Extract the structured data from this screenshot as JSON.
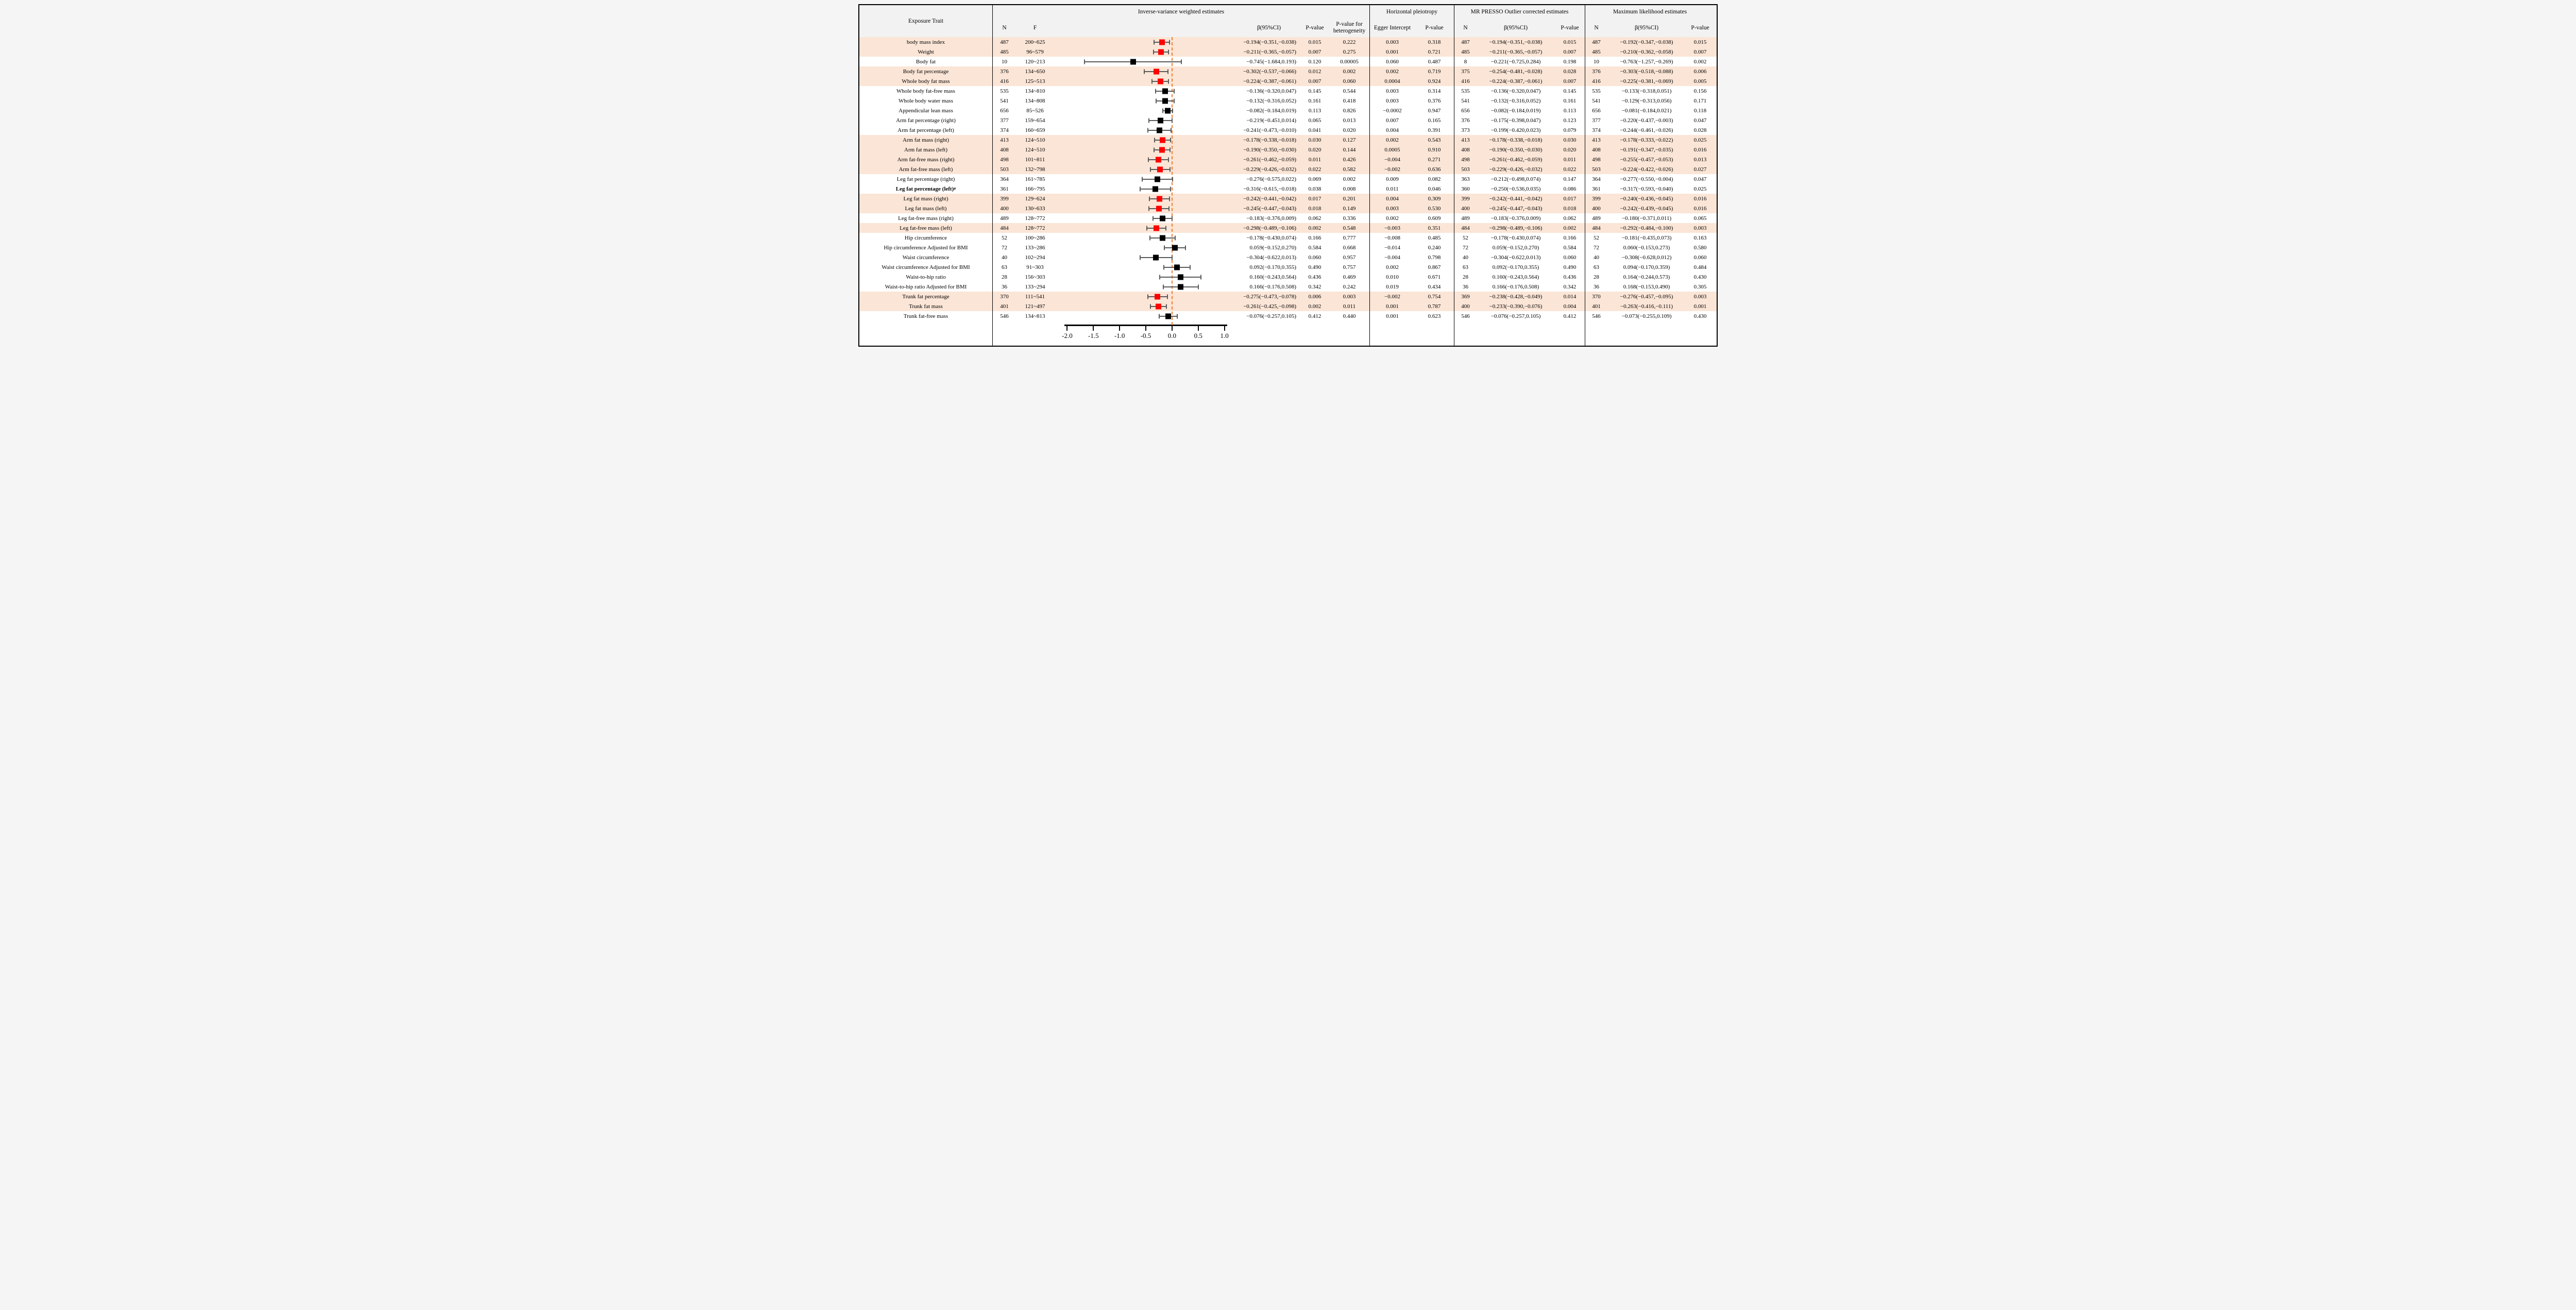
{
  "colors": {
    "highlight": "#fbe5d6",
    "header_bg": "#f2f2f2",
    "marker_significant": "#ff0000",
    "marker_default": "#000000",
    "ci_bar": "#595959",
    "zero_line": "#ed7d31",
    "border": "#000000"
  },
  "header": {
    "exposure_trait": "Exposure Trait",
    "ivw": {
      "title": "Inverse-variance weighted estimates",
      "n": "N",
      "f": "F",
      "beta": "β(95%CI)",
      "p": "P-value",
      "het": "P-value for heterogeneity"
    },
    "pleiotropy": {
      "title": "Horizontal pleiotropy",
      "egger": "Egger Intercept",
      "p": "P-value"
    },
    "presso": {
      "title": "MR PRESSO Outlier corrected estimates",
      "n": "N",
      "beta": "β(95%CI)",
      "p": "P-value"
    },
    "ml": {
      "title": "Maximum likelihood estimates",
      "n": "N",
      "beta": "β(95%CI)",
      "p": "P-value"
    }
  },
  "chart_data": {
    "type": "table",
    "plot": "forest",
    "xlabel": "",
    "xlim": [
      -2.25,
      1.25
    ],
    "axis_ticks": [
      {
        "v": -2.0,
        "label": "-2.0"
      },
      {
        "v": -1.5,
        "label": "-1.5"
      },
      {
        "v": -1.0,
        "label": "-1.0"
      },
      {
        "v": -0.5,
        "label": "-0.5"
      },
      {
        "v": 0.0,
        "label": "0.0"
      },
      {
        "v": 0.5,
        "label": "0.5"
      },
      {
        "v": 1.0,
        "label": "1.0"
      }
    ],
    "axis_line_span": [
      -2.05,
      1.05
    ],
    "zero_reference": 0,
    "rows": [
      {
        "trait": "body mass index",
        "sup": "",
        "bold": false,
        "hl": true,
        "n": "487",
        "f": "200~625",
        "est": -0.194,
        "lo": -0.351,
        "hi": -0.038,
        "beta_ci": "−0.194(−0.351,−0.038)",
        "p": "0.015",
        "p_het": "0.222",
        "egger": "0.003",
        "p_egger": "0.318",
        "n_presso": "487",
        "beta_ci_presso": "−0.194(−0.351,−0.038)",
        "p_presso": "0.015",
        "n_ml": "487",
        "beta_ci_ml": "−0.192(−0.347,−0.038)",
        "p_ml": "0.015"
      },
      {
        "trait": "Weight",
        "sup": "",
        "bold": false,
        "hl": true,
        "n": "485",
        "f": "96~579",
        "est": -0.211,
        "lo": -0.365,
        "hi": -0.057,
        "beta_ci": "−0.211(−0.365,−0.057)",
        "p": "0.007",
        "p_het": "0.275",
        "egger": "0.001",
        "p_egger": "0.721",
        "n_presso": "485",
        "beta_ci_presso": "−0.211(−0.365,−0.057)",
        "p_presso": "0.007",
        "n_ml": "485",
        "beta_ci_ml": "−0.210(−0.362,−0.058)",
        "p_ml": "0.007"
      },
      {
        "trait": "Body fat",
        "sup": "",
        "bold": false,
        "hl": false,
        "n": "10",
        "f": "120~213",
        "est": -0.745,
        "lo": -1.684,
        "hi": 0.193,
        "beta_ci": "−0.745(−1.684,0.193)",
        "p": "0.120",
        "p_het": "0.00005",
        "egger": "0.060",
        "p_egger": "0.487",
        "n_presso": "8",
        "beta_ci_presso": "−0.221(−0.725,0.284)",
        "p_presso": "0.198",
        "n_ml": "10",
        "beta_ci_ml": "−0.763(−1.257,−0.269)",
        "p_ml": "0.002"
      },
      {
        "trait": "Body fat percentage",
        "sup": "",
        "bold": false,
        "hl": true,
        "n": "376",
        "f": "134~650",
        "est": -0.302,
        "lo": -0.537,
        "hi": -0.066,
        "beta_ci": "−0.302(−0.537,−0.066)",
        "p": "0.012",
        "p_het": "0.002",
        "egger": "0.002",
        "p_egger": "0.719",
        "n_presso": "375",
        "beta_ci_presso": "−0.254(−0.481,−0.028)",
        "p_presso": "0.028",
        "n_ml": "376",
        "beta_ci_ml": "−0.303(−0.518,−0.088)",
        "p_ml": "0.006"
      },
      {
        "trait": "Whole body fat mass",
        "sup": "",
        "bold": false,
        "hl": true,
        "n": "416",
        "f": "125~513",
        "est": -0.224,
        "lo": -0.387,
        "hi": -0.061,
        "beta_ci": "−0.224(−0.387,−0.061)",
        "p": "0.007",
        "p_het": "0.060",
        "egger": "0.0004",
        "p_egger": "0.924",
        "n_presso": "416",
        "beta_ci_presso": "−0.224(−0.387,−0.061)",
        "p_presso": "0.007",
        "n_ml": "416",
        "beta_ci_ml": "−0.225(−0.381,−0.069)",
        "p_ml": "0.005"
      },
      {
        "trait": "Whole body fat-free mass",
        "sup": "",
        "bold": false,
        "hl": false,
        "n": "535",
        "f": "134~810",
        "est": -0.136,
        "lo": -0.32,
        "hi": 0.047,
        "beta_ci": "−0.136(−0.320,0.047)",
        "p": "0.145",
        "p_het": "0.544",
        "egger": "0.003",
        "p_egger": "0.314",
        "n_presso": "535",
        "beta_ci_presso": "−0.136(−0.320,0.047)",
        "p_presso": "0.145",
        "n_ml": "535",
        "beta_ci_ml": "−0.133(−0.318,0.051)",
        "p_ml": "0.156"
      },
      {
        "trait": "Whole body water mass",
        "sup": "",
        "bold": false,
        "hl": false,
        "n": "541",
        "f": "134~808",
        "est": -0.132,
        "lo": -0.316,
        "hi": 0.052,
        "beta_ci": "−0.132(−0.316,0.052)",
        "p": "0.161",
        "p_het": "0.418",
        "egger": "0.003",
        "p_egger": "0.376",
        "n_presso": "541",
        "beta_ci_presso": "−0.132(−0.316,0.052)",
        "p_presso": "0.161",
        "n_ml": "541",
        "beta_ci_ml": "−0.129(−0.313,0.056)",
        "p_ml": "0.171"
      },
      {
        "trait": "Appendicular lean mass",
        "sup": "",
        "bold": false,
        "hl": false,
        "n": "656",
        "f": "85~526",
        "est": -0.082,
        "lo": -0.184,
        "hi": 0.019,
        "beta_ci": "−0.082(−0.184,0.019)",
        "p": "0.113",
        "p_het": "0.826",
        "egger": "−0.0002",
        "p_egger": "0.947",
        "n_presso": "656",
        "beta_ci_presso": "−0.082(−0.184,0.019)",
        "p_presso": "0.113",
        "n_ml": "656",
        "beta_ci_ml": "−0.081(−0.184,0.021)",
        "p_ml": "0.118"
      },
      {
        "trait": "Arm fat percentage (right)",
        "sup": "",
        "bold": false,
        "hl": false,
        "n": "377",
        "f": "159~654",
        "est": -0.219,
        "lo": -0.451,
        "hi": 0.014,
        "beta_ci": "−0.219(−0.451,0.014)",
        "p": "0.065",
        "p_het": "0.013",
        "egger": "0.007",
        "p_egger": "0.165",
        "n_presso": "376",
        "beta_ci_presso": "−0.175(−0.398,0.047)",
        "p_presso": "0.123",
        "n_ml": "377",
        "beta_ci_ml": "−0.220(−0.437,−0.003)",
        "p_ml": "0.047"
      },
      {
        "trait": "Arm fat percentage (left)",
        "sup": "",
        "bold": false,
        "hl": false,
        "n": "374",
        "f": "160~659",
        "est": -0.241,
        "lo": -0.473,
        "hi": -0.01,
        "beta_ci": "−0.241(−0.473,−0.010)",
        "p": "0.041",
        "p_het": "0.020",
        "egger": "0.004",
        "p_egger": "0.391",
        "n_presso": "373",
        "beta_ci_presso": "−0.199(−0.420,0.023)",
        "p_presso": "0.079",
        "n_ml": "374",
        "beta_ci_ml": "−0.244(−0.461,−0.026)",
        "p_ml": "0.028"
      },
      {
        "trait": "Arm fat mass (right)",
        "sup": "",
        "bold": false,
        "hl": true,
        "n": "413",
        "f": "124~510",
        "est": -0.178,
        "lo": -0.338,
        "hi": -0.018,
        "beta_ci": "−0.178(−0.338,−0.018)",
        "p": "0.030",
        "p_het": "0.127",
        "egger": "0.002",
        "p_egger": "0.543",
        "n_presso": "413",
        "beta_ci_presso": "−0.178(−0.338,−0.018)",
        "p_presso": "0.030",
        "n_ml": "413",
        "beta_ci_ml": "−0.178(−0.333,−0.022)",
        "p_ml": "0.025"
      },
      {
        "trait": "Arm fat mass (left)",
        "sup": "",
        "bold": false,
        "hl": true,
        "n": "408",
        "f": "124~510",
        "est": -0.19,
        "lo": -0.35,
        "hi": -0.03,
        "beta_ci": "−0.190(−0.350,−0.030)",
        "p": "0.020",
        "p_het": "0.144",
        "egger": "0.0005",
        "p_egger": "0.910",
        "n_presso": "408",
        "beta_ci_presso": "−0.190(−0.350,−0.030)",
        "p_presso": "0.020",
        "n_ml": "408",
        "beta_ci_ml": "−0.191(−0.347,−0.035)",
        "p_ml": "0.016"
      },
      {
        "trait": "Arm fat-free mass (right)",
        "sup": "",
        "bold": false,
        "hl": true,
        "n": "498",
        "f": "101~811",
        "est": -0.261,
        "lo": -0.462,
        "hi": -0.059,
        "beta_ci": "−0.261(−0.462,−0.059)",
        "p": "0.011",
        "p_het": "0.426",
        "egger": "−0.004",
        "p_egger": "0.271",
        "n_presso": "498",
        "beta_ci_presso": "−0.261(−0.462,−0.059)",
        "p_presso": "0.011",
        "n_ml": "498",
        "beta_ci_ml": "−0.255(−0.457,−0.053)",
        "p_ml": "0.013"
      },
      {
        "trait": "Arm fat-free mass (left)",
        "sup": "",
        "bold": false,
        "hl": true,
        "n": "503",
        "f": "132~798",
        "est": -0.229,
        "lo": -0.426,
        "hi": -0.032,
        "beta_ci": "−0.229(−0.426,−0.032)",
        "p": "0.022",
        "p_het": "0.582",
        "egger": "−0.002",
        "p_egger": "0.636",
        "n_presso": "503",
        "beta_ci_presso": "−0.229(−0.426,−0.032)",
        "p_presso": "0.022",
        "n_ml": "503",
        "beta_ci_ml": "−0.224(−0.422,−0.026)",
        "p_ml": "0.027"
      },
      {
        "trait": "Leg fat percentage (right)",
        "sup": "",
        "bold": false,
        "hl": false,
        "n": "364",
        "f": "161~785",
        "est": -0.276,
        "lo": -0.575,
        "hi": 0.022,
        "beta_ci": "−0.276(−0.575,0.022)",
        "p": "0.069",
        "p_het": "0.002",
        "egger": "0.009",
        "p_egger": "0.082",
        "n_presso": "363",
        "beta_ci_presso": "−0.212(−0.498,0.074)",
        "p_presso": "0.147",
        "n_ml": "364",
        "beta_ci_ml": "−0.277(−0.550,−0.004)",
        "p_ml": "0.047"
      },
      {
        "trait": "Leg fat percentage (left)",
        "sup": "#",
        "bold": true,
        "hl": false,
        "n": "361",
        "f": "166~795",
        "est": -0.316,
        "lo": -0.615,
        "hi": -0.018,
        "beta_ci": "−0.316(−0.615,−0.018)",
        "p": "0.038",
        "p_het": "0.008",
        "egger": "0.011",
        "p_egger": "0.046",
        "n_presso": "360",
        "beta_ci_presso": "−0.250(−0.536,0.035)",
        "p_presso": "0.086",
        "n_ml": "361",
        "beta_ci_ml": "−0.317(−0.593,−0.040)",
        "p_ml": "0.025"
      },
      {
        "trait": "Leg fat mass (right)",
        "sup": "",
        "bold": false,
        "hl": true,
        "n": "399",
        "f": "129~624",
        "est": -0.242,
        "lo": -0.441,
        "hi": -0.042,
        "beta_ci": "−0.242(−0.441,−0.042)",
        "p": "0.017",
        "p_het": "0.201",
        "egger": "0.004",
        "p_egger": "0.309",
        "n_presso": "399",
        "beta_ci_presso": "−0.242(−0.441,−0.042)",
        "p_presso": "0.017",
        "n_ml": "399",
        "beta_ci_ml": "−0.240(−0.436,−0.045)",
        "p_ml": "0.016"
      },
      {
        "trait": "Leg fat mass (left)",
        "sup": "",
        "bold": false,
        "hl": true,
        "n": "400",
        "f": "130~633",
        "est": -0.245,
        "lo": -0.447,
        "hi": -0.043,
        "beta_ci": "−0.245(−0.447,−0.043)",
        "p": "0.018",
        "p_het": "0.149",
        "egger": "0.003",
        "p_egger": "0.530",
        "n_presso": "400",
        "beta_ci_presso": "−0.245(−0.447,−0.043)",
        "p_presso": "0.018",
        "n_ml": "400",
        "beta_ci_ml": "−0.242(−0.439,−0.045)",
        "p_ml": "0.016"
      },
      {
        "trait": "Leg fat-free mass (right)",
        "sup": "",
        "bold": false,
        "hl": false,
        "n": "489",
        "f": "128~772",
        "est": -0.183,
        "lo": -0.376,
        "hi": 0.009,
        "beta_ci": "−0.183(−0.376,0.009)",
        "p": "0.062",
        "p_het": "0.336",
        "egger": "0.002",
        "p_egger": "0.609",
        "n_presso": "489",
        "beta_ci_presso": "−0.183(−0.376,0.009)",
        "p_presso": "0.062",
        "n_ml": "489",
        "beta_ci_ml": "−0.180(−0.371,0.011)",
        "p_ml": "0.065"
      },
      {
        "trait": "Leg fat-free mass (left)",
        "sup": "",
        "bold": false,
        "hl": true,
        "n": "484",
        "f": "128~772",
        "est": -0.298,
        "lo": -0.489,
        "hi": -0.106,
        "beta_ci": "−0.298(−0.489,−0.106)",
        "p": "0.002",
        "p_het": "0.548",
        "egger": "−0.003",
        "p_egger": "0.351",
        "n_presso": "484",
        "beta_ci_presso": "−0.298(−0.489,−0.106)",
        "p_presso": "0.002",
        "n_ml": "484",
        "beta_ci_ml": "−0.292(−0.484,−0.100)",
        "p_ml": "0.003"
      },
      {
        "trait": "Hip circumference",
        "sup": "",
        "bold": false,
        "hl": false,
        "n": "52",
        "f": "100~286",
        "est": -0.178,
        "lo": -0.43,
        "hi": 0.074,
        "beta_ci": "−0.178(−0.430,0.074)",
        "p": "0.166",
        "p_het": "0.777",
        "egger": "−0.008",
        "p_egger": "0.485",
        "n_presso": "52",
        "beta_ci_presso": "−0.178(−0.430,0.074)",
        "p_presso": "0.166",
        "n_ml": "52",
        "beta_ci_ml": "−0.181(−0.435,0.073)",
        "p_ml": "0.163"
      },
      {
        "trait": "Hip circumference Adjusted for BMI",
        "sup": "",
        "bold": false,
        "hl": false,
        "n": "72",
        "f": "133~286",
        "est": 0.059,
        "lo": -0.152,
        "hi": 0.27,
        "beta_ci": "0.059(−0.152,0.270)",
        "p": "0.584",
        "p_het": "0.668",
        "egger": "−0.014",
        "p_egger": "0.240",
        "n_presso": "72",
        "beta_ci_presso": "0.059(−0.152,0.270)",
        "p_presso": "0.584",
        "n_ml": "72",
        "beta_ci_ml": "0.060(−0.153,0.273)",
        "p_ml": "0.580"
      },
      {
        "trait": "Waist circumference",
        "sup": "",
        "bold": false,
        "hl": false,
        "n": "40",
        "f": "102~294",
        "est": -0.304,
        "lo": -0.622,
        "hi": 0.013,
        "beta_ci": "−0.304(−0.622,0.013)",
        "p": "0.060",
        "p_het": "0.957",
        "egger": "−0.004",
        "p_egger": "0.798",
        "n_presso": "40",
        "beta_ci_presso": "−0.304(−0.622,0.013)",
        "p_presso": "0.060",
        "n_ml": "40",
        "beta_ci_ml": "−0.308(−0.628,0.012)",
        "p_ml": "0.060"
      },
      {
        "trait": "Waist circumference Adjusted for BMI",
        "sup": "",
        "bold": false,
        "hl": false,
        "n": "63",
        "f": "91~303",
        "est": 0.092,
        "lo": -0.17,
        "hi": 0.355,
        "beta_ci": "0.092(−0.170,0.355)",
        "p": "0.490",
        "p_het": "0.757",
        "egger": "0.002",
        "p_egger": "0.867",
        "n_presso": "63",
        "beta_ci_presso": "0.092(−0.170,0.355)",
        "p_presso": "0.490",
        "n_ml": "63",
        "beta_ci_ml": "0.094(−0.170,0.359)",
        "p_ml": "0.484"
      },
      {
        "trait": "Waist-to-hip ratio",
        "sup": "",
        "bold": false,
        "hl": false,
        "n": "28",
        "f": "156~303",
        "est": 0.16,
        "lo": -0.243,
        "hi": 0.564,
        "beta_ci": "0.160(−0.243,0.564)",
        "p": "0.436",
        "p_het": "0.469",
        "egger": "0.010",
        "p_egger": "0.671",
        "n_presso": "28",
        "beta_ci_presso": "0.160(−0.243,0.564)",
        "p_presso": "0.436",
        "n_ml": "28",
        "beta_ci_ml": "0.164(−0.244,0.573)",
        "p_ml": "0.430"
      },
      {
        "trait": "Waist-to-hip ratio Adjusted for BMI",
        "sup": "",
        "bold": false,
        "hl": false,
        "n": "36",
        "f": "133~294",
        "est": 0.166,
        "lo": -0.176,
        "hi": 0.508,
        "beta_ci": "0.166(−0.176,0.508)",
        "p": "0.342",
        "p_het": "0.242",
        "egger": "0.019",
        "p_egger": "0.434",
        "n_presso": "36",
        "beta_ci_presso": "0.166(−0.176,0.508)",
        "p_presso": "0.342",
        "n_ml": "36",
        "beta_ci_ml": "0.168(−0.153,0.490)",
        "p_ml": "0.305"
      },
      {
        "trait": "Trunk fat percentage",
        "sup": "",
        "bold": false,
        "hl": true,
        "n": "370",
        "f": "111~541",
        "est": -0.275,
        "lo": -0.473,
        "hi": -0.078,
        "beta_ci": "−0.275(−0.473,−0.078)",
        "p": "0.006",
        "p_het": "0.003",
        "egger": "−0.002",
        "p_egger": "0.754",
        "n_presso": "369",
        "beta_ci_presso": "−0.238(−0.428,−0.049)",
        "p_presso": "0.014",
        "n_ml": "370",
        "beta_ci_ml": "−0.276(−0.457,−0.095)",
        "p_ml": "0.003"
      },
      {
        "trait": "Trunk fat mass",
        "sup": "",
        "bold": false,
        "hl": true,
        "n": "401",
        "f": "121~497",
        "est": -0.261,
        "lo": -0.425,
        "hi": -0.098,
        "beta_ci": "−0.261(−0.425,−0.098)",
        "p": "0.002",
        "p_het": "0.011",
        "egger": "0.001",
        "p_egger": "0.787",
        "n_presso": "400",
        "beta_ci_presso": "−0.233(−0.390,−0.076)",
        "p_presso": "0.004",
        "n_ml": "401",
        "beta_ci_ml": "−0.263(−0.416,−0.111)",
        "p_ml": "0.001"
      },
      {
        "trait": "Trunk fat-free mass",
        "sup": "",
        "bold": false,
        "hl": false,
        "n": "546",
        "f": "134~813",
        "est": -0.076,
        "lo": -0.257,
        "hi": 0.105,
        "beta_ci": "−0.076(−0.257,0.105)",
        "p": "0.412",
        "p_het": "0.440",
        "egger": "0.001",
        "p_egger": "0.623",
        "n_presso": "546",
        "beta_ci_presso": "−0.076(−0.257,0.105)",
        "p_presso": "0.412",
        "n_ml": "546",
        "beta_ci_ml": "−0.073(−0.255,0.109)",
        "p_ml": "0.430"
      }
    ]
  }
}
